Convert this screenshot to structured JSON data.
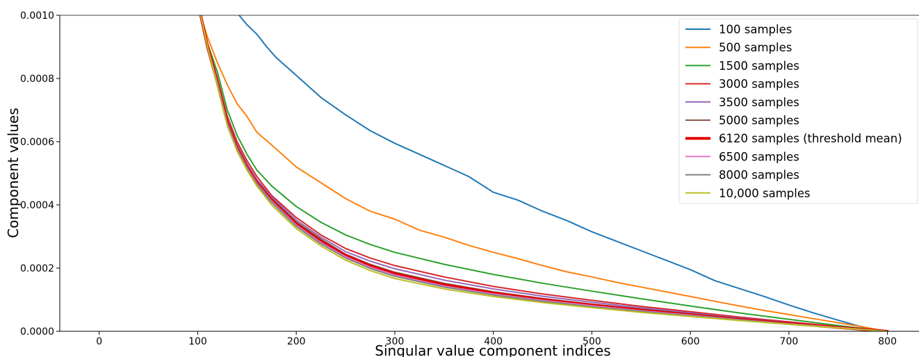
{
  "chart_data": {
    "type": "line",
    "title": "",
    "xlabel": "Singular value component indices",
    "ylabel": "Component values",
    "xlim": [
      -40,
      832
    ],
    "ylim": [
      0,
      0.001
    ],
    "xticks": [
      0,
      100,
      200,
      300,
      400,
      500,
      600,
      700,
      800
    ],
    "xtick_labels": [
      "0",
      "100",
      "200",
      "300",
      "400",
      "500",
      "600",
      "700",
      "800"
    ],
    "yticks": [
      0,
      0.0002,
      0.0004,
      0.0006,
      0.0008,
      0.001
    ],
    "ytick_labels": [
      "0.0000",
      "0.0002",
      "0.0004",
      "0.0006",
      "0.0008",
      "0.0010"
    ],
    "grid": false,
    "legend_position": "top-right",
    "series": [
      {
        "name": "100 samples",
        "color": "#1f77b4",
        "width": 2,
        "x": [
          142,
          150,
          160,
          170,
          180,
          200,
          225,
          250,
          275,
          300,
          325,
          350,
          375,
          400,
          425,
          450,
          475,
          500,
          525,
          550,
          575,
          600,
          625,
          650,
          675,
          700,
          725,
          750,
          775,
          790,
          800
        ],
        "y": [
          0.001,
          0.00097,
          0.00094,
          0.0009,
          0.000865,
          0.00081,
          0.00074,
          0.000685,
          0.000635,
          0.000595,
          0.00056,
          0.000525,
          0.00049,
          0.00044,
          0.000415,
          0.00038,
          0.00035,
          0.000315,
          0.000285,
          0.000255,
          0.000225,
          0.000195,
          0.00016,
          0.000135,
          0.00011,
          8.3e-05,
          5.8e-05,
          3.5e-05,
          1.3e-05,
          3e-06,
          0
        ]
      },
      {
        "name": "500 samples",
        "color": "#ff7f0e",
        "width": 2,
        "x": [
          103,
          110,
          120,
          130,
          140,
          150,
          160,
          175,
          200,
          225,
          250,
          275,
          300,
          325,
          350,
          375,
          400,
          425,
          450,
          475,
          500,
          525,
          550,
          575,
          600,
          625,
          650,
          675,
          700,
          725,
          750,
          775,
          800
        ],
        "y": [
          0.001,
          0.00093,
          0.00085,
          0.00078,
          0.00072,
          0.00068,
          0.00063,
          0.00059,
          0.00052,
          0.00047,
          0.00042,
          0.00038,
          0.000355,
          0.00032,
          0.000298,
          0.000272,
          0.00025,
          0.00023,
          0.000208,
          0.000188,
          0.000172,
          0.000155,
          0.00014,
          0.000125,
          0.00011,
          9.5e-05,
          8e-05,
          6.6e-05,
          5.3e-05,
          4e-05,
          2.7e-05,
          1.4e-05,
          0
        ]
      },
      {
        "name": "1500 samples",
        "color": "#2ca02c",
        "width": 2,
        "x": [
          103,
          110,
          120,
          130,
          140,
          150,
          160,
          175,
          200,
          225,
          250,
          275,
          300,
          350,
          400,
          450,
          500,
          550,
          600,
          650,
          700,
          750,
          800
        ],
        "y": [
          0.001,
          0.00091,
          0.00082,
          0.0007,
          0.00062,
          0.00056,
          0.00051,
          0.00046,
          0.000395,
          0.000345,
          0.000305,
          0.000275,
          0.00025,
          0.000212,
          0.00018,
          0.000152,
          0.000127,
          0.000103,
          8e-05,
          5.8e-05,
          3.8e-05,
          1.8e-05,
          0
        ]
      },
      {
        "name": "3000 samples",
        "color": "#d62728",
        "width": 2,
        "x": [
          103,
          110,
          120,
          130,
          140,
          150,
          160,
          175,
          200,
          225,
          250,
          275,
          300,
          350,
          400,
          450,
          500,
          550,
          600,
          650,
          700,
          750,
          800
        ],
        "y": [
          0.001,
          0.00091,
          0.0008,
          0.00068,
          0.0006,
          0.00054,
          0.00049,
          0.00043,
          0.00036,
          0.000305,
          0.000262,
          0.000232,
          0.000208,
          0.000172,
          0.000142,
          0.000118,
          9.8e-05,
          7.9e-05,
          6.2e-05,
          4.5e-05,
          3e-05,
          1.5e-05,
          0
        ]
      },
      {
        "name": "3500 samples",
        "color": "#9467bd",
        "width": 2,
        "x": [
          103,
          110,
          120,
          130,
          140,
          150,
          160,
          175,
          200,
          225,
          250,
          275,
          300,
          350,
          400,
          450,
          500,
          550,
          600,
          650,
          700,
          750,
          800
        ],
        "y": [
          0.001,
          0.0009,
          0.00079,
          0.00067,
          0.00059,
          0.00053,
          0.00048,
          0.000425,
          0.000352,
          0.000298,
          0.000252,
          0.000222,
          0.000198,
          0.000162,
          0.000134,
          0.000111,
          9.2e-05,
          7.4e-05,
          5.8e-05,
          4.2e-05,
          2.8e-05,
          1.4e-05,
          0
        ]
      },
      {
        "name": "5000 samples",
        "color": "#8c564b",
        "width": 2,
        "x": [
          103,
          110,
          120,
          130,
          140,
          150,
          160,
          175,
          200,
          225,
          250,
          275,
          300,
          350,
          400,
          450,
          500,
          550,
          600,
          650,
          700,
          750,
          800
        ],
        "y": [
          0.001,
          0.0009,
          0.00079,
          0.000665,
          0.000585,
          0.000525,
          0.000475,
          0.00042,
          0.000346,
          0.000292,
          0.000244,
          0.000212,
          0.000187,
          0.000152,
          0.000125,
          0.000104,
          8.6e-05,
          7e-05,
          5.5e-05,
          4e-05,
          2.6e-05,
          1.3e-05,
          0
        ]
      },
      {
        "name": "6120 samples (threshold mean)",
        "color": "#e00000",
        "width": 4,
        "x": [
          103,
          110,
          120,
          130,
          140,
          150,
          160,
          175,
          200,
          225,
          250,
          275,
          300,
          350,
          400,
          450,
          500,
          550,
          600,
          650,
          700,
          750,
          800
        ],
        "y": [
          0.001,
          0.0009,
          0.000785,
          0.00066,
          0.00058,
          0.00052,
          0.00047,
          0.000415,
          0.00034,
          0.000285,
          0.00024,
          0.000207,
          0.000182,
          0.000147,
          0.000121,
          0.0001,
          8.3e-05,
          6.7e-05,
          5.2e-05,
          3.8e-05,
          2.5e-05,
          1.2e-05,
          0
        ]
      },
      {
        "name": "6500 samples",
        "color": "#e377c2",
        "width": 2,
        "x": [
          103,
          110,
          120,
          130,
          140,
          150,
          160,
          175,
          200,
          225,
          250,
          275,
          300,
          350,
          400,
          450,
          500,
          550,
          600,
          650,
          700,
          750,
          800
        ],
        "y": [
          0.001,
          0.0009,
          0.000785,
          0.000658,
          0.000578,
          0.000518,
          0.000468,
          0.000412,
          0.000336,
          0.000281,
          0.000236,
          0.000203,
          0.000178,
          0.000143,
          0.000118,
          9.8e-05,
          8.1e-05,
          6.5e-05,
          5.1e-05,
          3.7e-05,
          2.4e-05,
          1.2e-05,
          0
        ]
      },
      {
        "name": "8000 samples",
        "color": "#7f7f7f",
        "width": 2,
        "x": [
          103,
          110,
          120,
          130,
          140,
          150,
          160,
          175,
          200,
          225,
          250,
          275,
          300,
          350,
          400,
          450,
          500,
          550,
          600,
          650,
          700,
          750,
          800
        ],
        "y": [
          0.001,
          0.0009,
          0.00078,
          0.000655,
          0.000575,
          0.000515,
          0.000465,
          0.000408,
          0.000332,
          0.000277,
          0.000232,
          0.000199,
          0.000174,
          0.00014,
          0.000115,
          9.5e-05,
          7.8e-05,
          6.3e-05,
          4.9e-05,
          3.6e-05,
          2.3e-05,
          1.1e-05,
          0
        ]
      },
      {
        "name": "10,000 samples",
        "color": "#bcbd22",
        "width": 2,
        "x": [
          103,
          110,
          120,
          130,
          140,
          150,
          160,
          175,
          200,
          225,
          250,
          275,
          300,
          350,
          400,
          450,
          500,
          550,
          600,
          650,
          700,
          750,
          800
        ],
        "y": [
          0.001,
          0.0009,
          0.000775,
          0.00065,
          0.00057,
          0.00051,
          0.00046,
          0.0004,
          0.000325,
          0.00027,
          0.000225,
          0.000192,
          0.000167,
          0.000134,
          0.00011,
          9.1e-05,
          7.5e-05,
          6e-05,
          4.7e-05,
          3.4e-05,
          2.2e-05,
          1.1e-05,
          0
        ]
      }
    ]
  }
}
